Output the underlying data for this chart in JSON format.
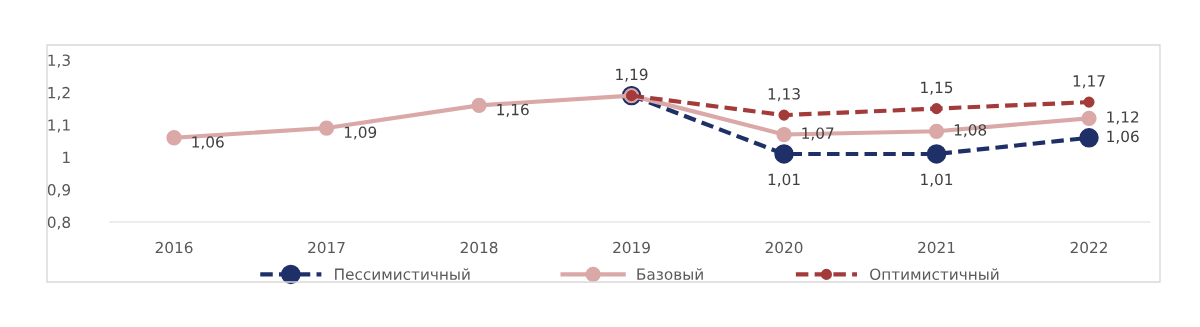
{
  "chart_data": {
    "type": "line",
    "categories": [
      "2016",
      "2017",
      "2018",
      "2019",
      "2020",
      "2021",
      "2022"
    ],
    "series": [
      {
        "name": "Пессимистичный",
        "color": "#1f3068",
        "line_style": "dashed",
        "values": [
          null,
          null,
          null,
          1.19,
          1.01,
          1.01,
          1.06
        ],
        "value_labels": [
          null,
          null,
          null,
          null,
          "1,01",
          "1,01",
          "1,06"
        ]
      },
      {
        "name": "Базовый",
        "color": "#dba8a8",
        "line_style": "solid",
        "values": [
          1.06,
          1.09,
          1.16,
          1.19,
          1.07,
          1.08,
          1.12
        ],
        "value_labels": [
          "1,06",
          "1,09",
          "1,16",
          null,
          "1,07",
          "1,08",
          "1,12"
        ]
      },
      {
        "name": "Оптимистичный",
        "color": "#a33b3b",
        "line_style": "dashed",
        "values": [
          null,
          null,
          null,
          1.19,
          1.13,
          1.15,
          1.17
        ],
        "value_labels": [
          null,
          null,
          null,
          "1,19",
          "1,13",
          "1,15",
          "1,17"
        ]
      }
    ],
    "ylim": [
      0.8,
      1.3
    ],
    "yticks": [
      {
        "value": 0.8,
        "label": "0,8"
      },
      {
        "value": 0.9,
        "label": "0,9"
      },
      {
        "value": 1,
        "label": "1"
      },
      {
        "value": 1.1,
        "label": "1,1"
      },
      {
        "value": 1.2,
        "label": "1,2"
      },
      {
        "value": 1.3,
        "label": "1,3"
      }
    ],
    "grid": false,
    "legend": "bottom",
    "marker": "circle"
  }
}
